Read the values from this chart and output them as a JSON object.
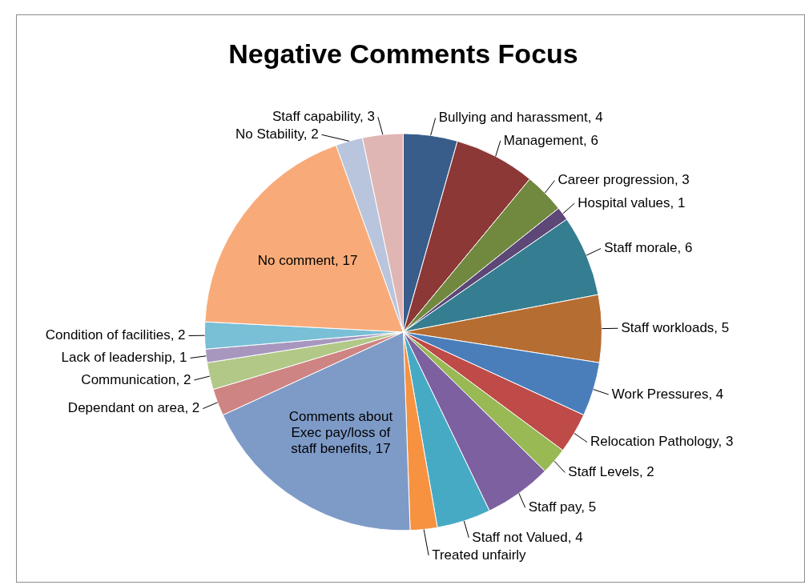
{
  "chart_data": {
    "type": "pie",
    "title": "Negative Comments Focus",
    "categories": [
      "Bullying and harassment",
      "Management",
      "Career progression",
      "Hospital values",
      "Staff morale",
      "Staff workloads",
      "Work Pressures",
      "Relocation Pathology",
      "Staff Levels",
      "Staff pay",
      "Staff not Valued",
      "Treated unfairly",
      "Comments about Exec pay/loss of staff benefits",
      "Dependant on area",
      "Communication",
      "Lack of leadership",
      "Condition of facilities",
      "No comment",
      "No Stability",
      "Staff capability"
    ],
    "values": [
      4,
      6,
      3,
      1,
      6,
      5,
      4,
      3,
      2,
      5,
      4,
      2,
      17,
      2,
      2,
      1,
      2,
      17,
      2,
      3
    ],
    "value_labels": [
      "4",
      "6",
      "3",
      "1",
      "6",
      "5",
      "4",
      "3",
      "2",
      "5",
      "4",
      null,
      "17",
      "2",
      "2",
      "1",
      "2",
      "17",
      "2",
      "3"
    ],
    "colors": [
      "#385d8a",
      "#8c3836",
      "#71893f",
      "#5c4776",
      "#357d91",
      "#b66d31",
      "#4a7ebb",
      "#be4b48",
      "#98b954",
      "#7d60a0",
      "#46aac5",
      "#f69240",
      "#7e9bc8",
      "#ce8483",
      "#b1c887",
      "#a797bf",
      "#79bfd6",
      "#f8ab79",
      "#b9c5dc",
      "#e0b6b5"
    ],
    "legend": false
  }
}
